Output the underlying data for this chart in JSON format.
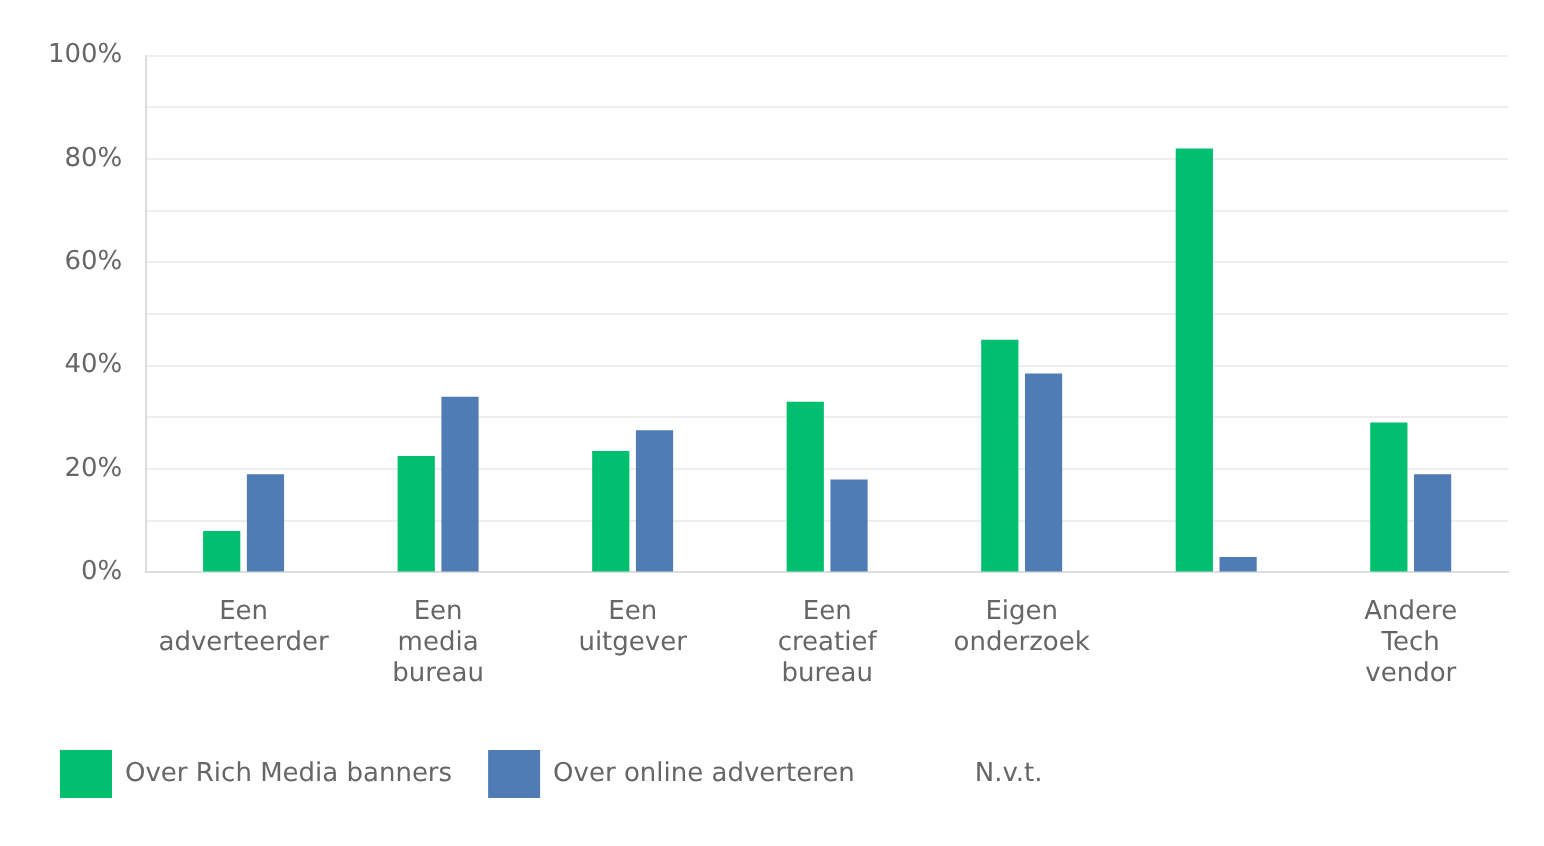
{
  "chart_data": {
    "type": "bar",
    "categories": [
      "Een adverteerder",
      "Een media bureau",
      "Een uitgever",
      "Een creatief bureau",
      "Eigen onderzoek",
      null,
      "Andere Tech vendor"
    ],
    "series": [
      {
        "name": "Over Rich Media banners",
        "color": "#00bf6f",
        "values": [
          8,
          22.5,
          23.5,
          33,
          45,
          82,
          29
        ]
      },
      {
        "name": "Over online adverteren",
        "color": "#507cb6",
        "values": [
          19,
          34,
          27.5,
          18,
          38.5,
          3,
          19
        ]
      }
    ],
    "annotations": [
      "N.v.t."
    ],
    "ylim": [
      0,
      100
    ],
    "yticks": [
      {
        "value": 0,
        "label": "0%"
      },
      {
        "value": 10,
        "label": null
      },
      {
        "value": 20,
        "label": "20%"
      },
      {
        "value": 30,
        "label": null
      },
      {
        "value": 40,
        "label": "40%"
      },
      {
        "value": 50,
        "label": null
      },
      {
        "value": 60,
        "label": "60%"
      },
      {
        "value": 70,
        "label": null
      },
      {
        "value": 80,
        "label": "80%"
      },
      {
        "value": 90,
        "label": null
      },
      {
        "value": 100,
        "label": "100%"
      }
    ],
    "grid": "y",
    "legend": "bottom"
  }
}
